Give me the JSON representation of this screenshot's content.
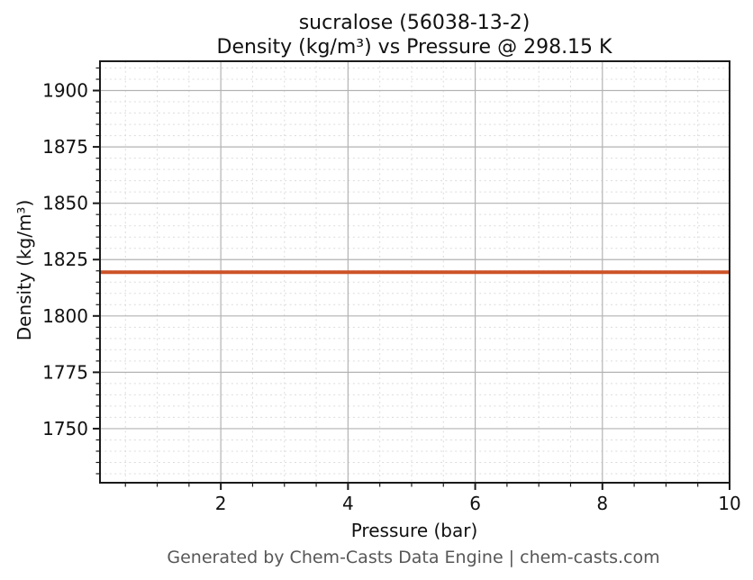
{
  "chart_data": {
    "type": "line",
    "title_lines": [
      "sucralose (56038-13-2)",
      "Density (kg/m³) vs Pressure @ 298.15 K"
    ],
    "xlabel": "Pressure (bar)",
    "ylabel": "Density (kg/m³)",
    "xlim": [
      0.1,
      10
    ],
    "ylim": [
      1726,
      1913
    ],
    "x_major_ticks": [
      2,
      4,
      6,
      8,
      10
    ],
    "x_minor_step": 0.5,
    "y_major_ticks": [
      1750,
      1775,
      1800,
      1825,
      1850,
      1875,
      1900
    ],
    "y_minor_step": 5,
    "grid": true,
    "legend": "none",
    "series": [
      {
        "name": "Density (kg/m³)",
        "color": "#cd5228",
        "line_width": 4,
        "x": [
          0.1,
          10
        ],
        "y": [
          1819.4,
          1819.4
        ]
      }
    ]
  },
  "footer": {
    "credit": "Generated by Chem-Casts Data Engine | chem-casts.com"
  }
}
